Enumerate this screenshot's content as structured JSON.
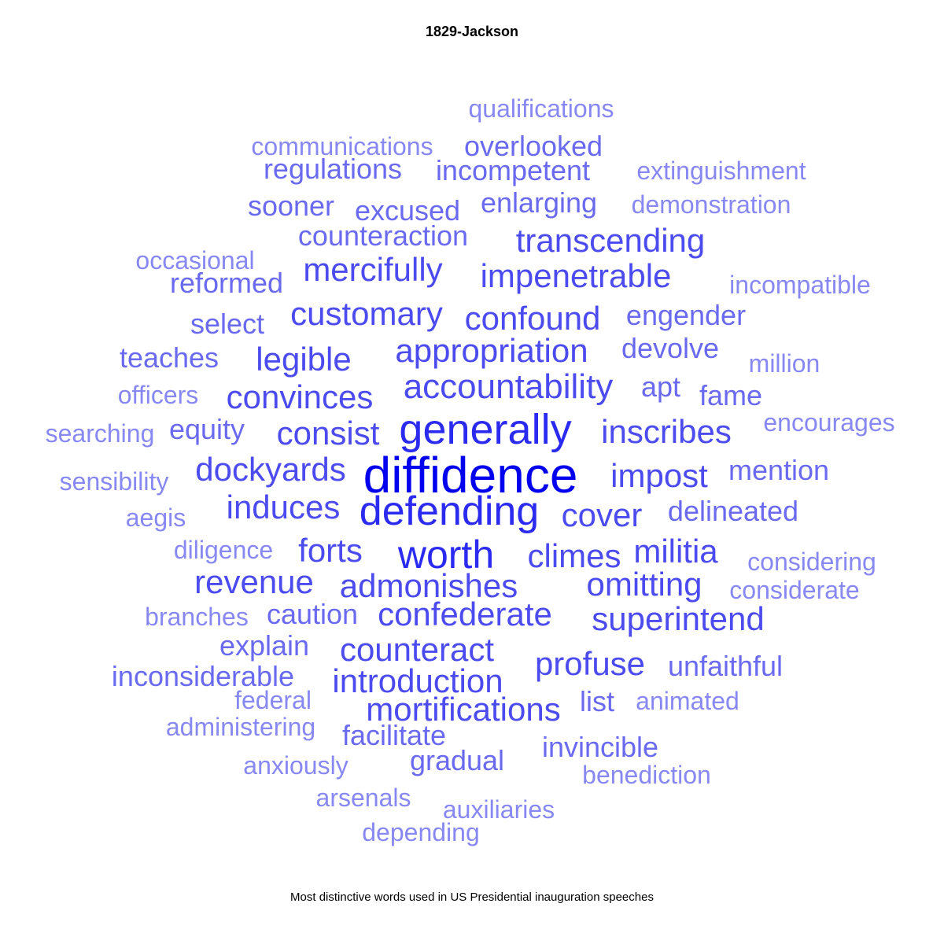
{
  "title": "1829-Jackson",
  "caption": "Most distinctive words used in US Presidential inauguration speeches",
  "colors": {
    "tier1": "#0000ee",
    "tier2": "#2a2af0",
    "tier3": "#4b4bf0",
    "tier4": "#6a6af0",
    "tier5": "#8888f2"
  },
  "words": [
    {
      "text": "diffidence",
      "weight": 1
    },
    {
      "text": "generally",
      "weight": 2
    },
    {
      "text": "defending",
      "weight": 2
    },
    {
      "text": "worth",
      "weight": 2
    },
    {
      "text": "accountability",
      "weight": 3
    },
    {
      "text": "transcending",
      "weight": 3
    },
    {
      "text": "impenetrable",
      "weight": 3
    },
    {
      "text": "mercifully",
      "weight": 3
    },
    {
      "text": "appropriation",
      "weight": 3
    },
    {
      "text": "confound",
      "weight": 3
    },
    {
      "text": "customary",
      "weight": 3
    },
    {
      "text": "convinces",
      "weight": 3
    },
    {
      "text": "legible",
      "weight": 3
    },
    {
      "text": "consist",
      "weight": 3
    },
    {
      "text": "inscribes",
      "weight": 3
    },
    {
      "text": "impost",
      "weight": 3
    },
    {
      "text": "dockyards",
      "weight": 3
    },
    {
      "text": "induces",
      "weight": 3
    },
    {
      "text": "cover",
      "weight": 3
    },
    {
      "text": "climes",
      "weight": 3
    },
    {
      "text": "militia",
      "weight": 3
    },
    {
      "text": "forts",
      "weight": 3
    },
    {
      "text": "revenue",
      "weight": 3
    },
    {
      "text": "admonishes",
      "weight": 3
    },
    {
      "text": "omitting",
      "weight": 3
    },
    {
      "text": "superintend",
      "weight": 3
    },
    {
      "text": "confederate",
      "weight": 3
    },
    {
      "text": "counteract",
      "weight": 3
    },
    {
      "text": "profuse",
      "weight": 3
    },
    {
      "text": "introduction",
      "weight": 3
    },
    {
      "text": "mortifications",
      "weight": 3
    },
    {
      "text": "overlooked",
      "weight": 4
    },
    {
      "text": "incompetent",
      "weight": 4
    },
    {
      "text": "regulations",
      "weight": 4
    },
    {
      "text": "enlarging",
      "weight": 4
    },
    {
      "text": "excused",
      "weight": 4
    },
    {
      "text": "sooner",
      "weight": 4
    },
    {
      "text": "reformed",
      "weight": 4
    },
    {
      "text": "select",
      "weight": 4
    },
    {
      "text": "teaches",
      "weight": 4
    },
    {
      "text": "engender",
      "weight": 4
    },
    {
      "text": "devolve",
      "weight": 4
    },
    {
      "text": "apt",
      "weight": 4
    },
    {
      "text": "fame",
      "weight": 4
    },
    {
      "text": "equity",
      "weight": 4
    },
    {
      "text": "mention",
      "weight": 4
    },
    {
      "text": "delineated",
      "weight": 4
    },
    {
      "text": "unfaithful",
      "weight": 4
    },
    {
      "text": "caution",
      "weight": 4
    },
    {
      "text": "explain",
      "weight": 4
    },
    {
      "text": "inconsiderable",
      "weight": 4
    },
    {
      "text": "facilitate",
      "weight": 4
    },
    {
      "text": "gradual",
      "weight": 4
    },
    {
      "text": "invincible",
      "weight": 4
    },
    {
      "text": "list",
      "weight": 4
    },
    {
      "text": "counteraction",
      "weight": 4
    },
    {
      "text": "qualifications",
      "weight": 5
    },
    {
      "text": "communications",
      "weight": 5
    },
    {
      "text": "extinguishment",
      "weight": 5
    },
    {
      "text": "demonstration",
      "weight": 5
    },
    {
      "text": "occasional",
      "weight": 5
    },
    {
      "text": "incompatible",
      "weight": 5
    },
    {
      "text": "million",
      "weight": 5
    },
    {
      "text": "officers",
      "weight": 5
    },
    {
      "text": "searching",
      "weight": 5
    },
    {
      "text": "encourages",
      "weight": 5
    },
    {
      "text": "sensibility",
      "weight": 5
    },
    {
      "text": "aegis",
      "weight": 5
    },
    {
      "text": "diligence",
      "weight": 5
    },
    {
      "text": "considering",
      "weight": 5
    },
    {
      "text": "considerate",
      "weight": 5
    },
    {
      "text": "branches",
      "weight": 5
    },
    {
      "text": "federal",
      "weight": 5
    },
    {
      "text": "animated",
      "weight": 5
    },
    {
      "text": "administering",
      "weight": 5
    },
    {
      "text": "anxiously",
      "weight": 5
    },
    {
      "text": "benediction",
      "weight": 5
    },
    {
      "text": "arsenals",
      "weight": 5
    },
    {
      "text": "auxiliaries",
      "weight": 5
    },
    {
      "text": "depending",
      "weight": 5
    }
  ]
}
